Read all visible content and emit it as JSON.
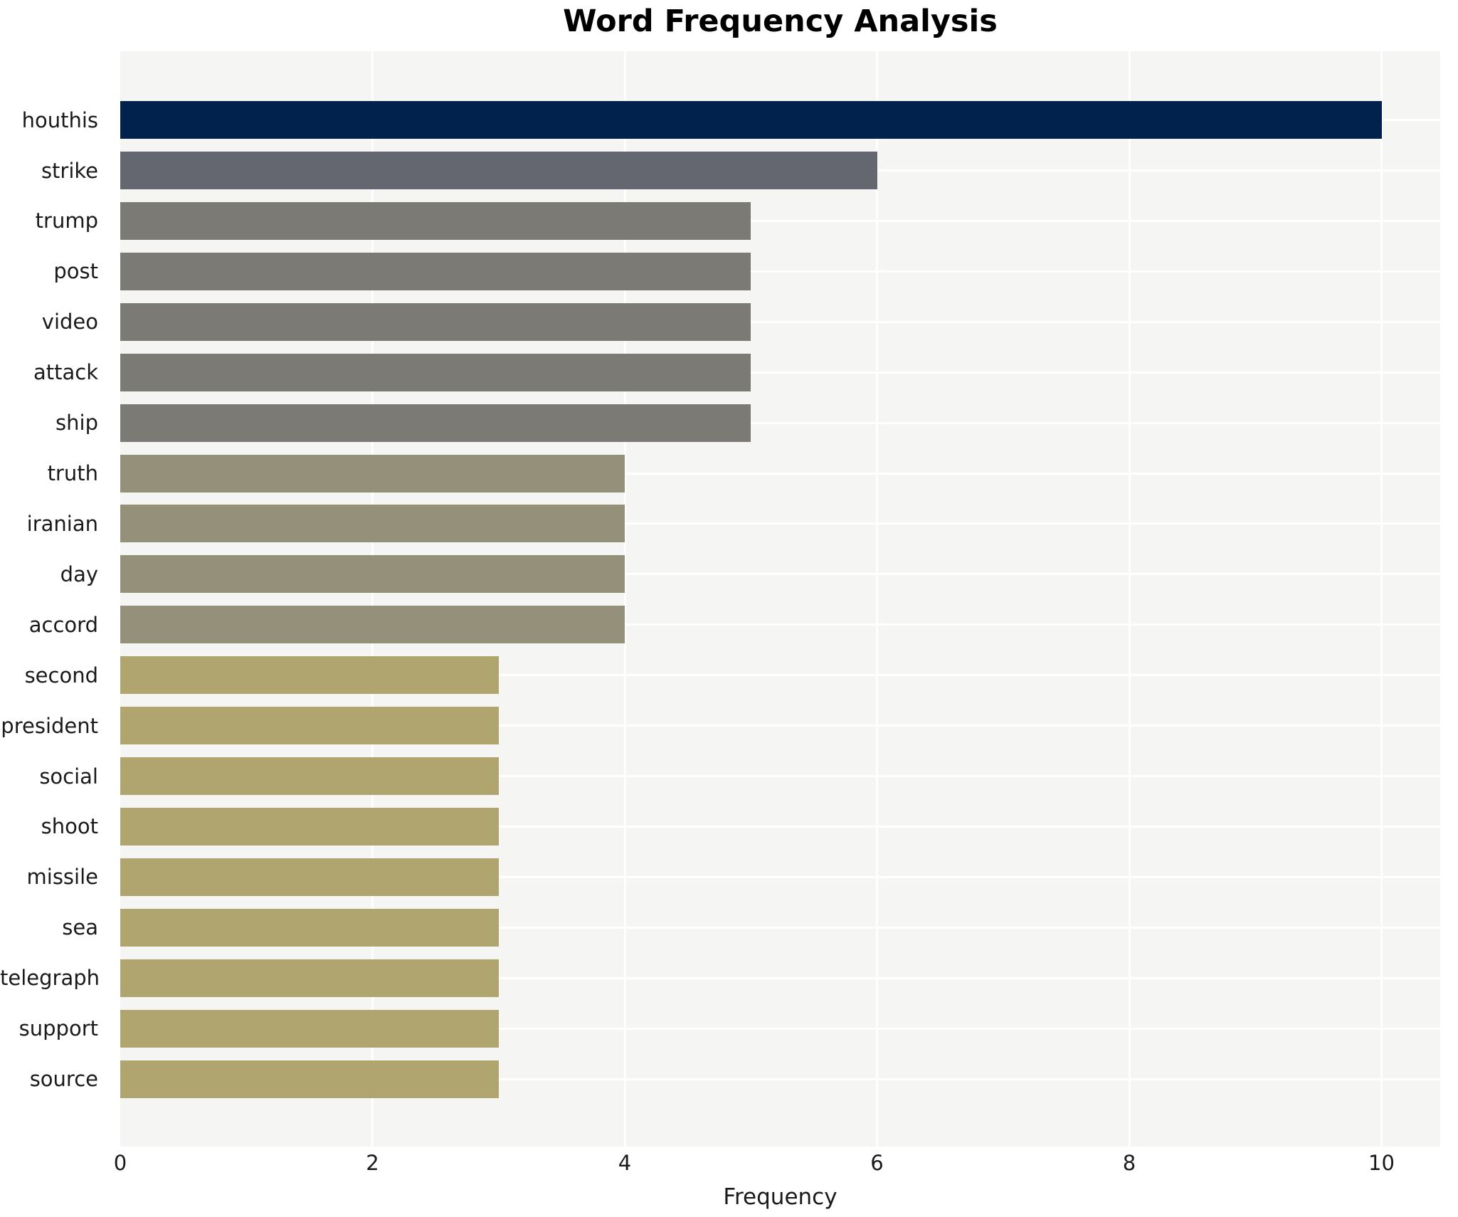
{
  "chart_data": {
    "type": "bar",
    "orientation": "horizontal",
    "title": "Word Frequency Analysis",
    "xlabel": "Frequency",
    "ylabel": "",
    "categories": [
      "houthis",
      "strike",
      "trump",
      "post",
      "video",
      "attack",
      "ship",
      "truth",
      "iranian",
      "day",
      "accord",
      "second",
      "president",
      "social",
      "shoot",
      "missile",
      "sea",
      "telegraph",
      "support",
      "source"
    ],
    "values": [
      10,
      6,
      5,
      5,
      5,
      5,
      5,
      4,
      4,
      4,
      4,
      3,
      3,
      3,
      3,
      3,
      3,
      3,
      3,
      3
    ],
    "xticks": [
      0,
      2,
      4,
      6,
      8,
      10
    ],
    "xlim": [
      0,
      10.47
    ],
    "grid": true,
    "legend": false,
    "plot_background": "#f5f5f4",
    "figure_background": "#ffffff",
    "grid_color": "#ffffff",
    "text_color": "#1a1a1a",
    "title_color": "#000000",
    "color_by_value": {
      "10": "#00224d",
      "6": "#64676f",
      "5": "#7b7a74",
      "4": "#95907a",
      "3": "#b0a56e"
    }
  }
}
